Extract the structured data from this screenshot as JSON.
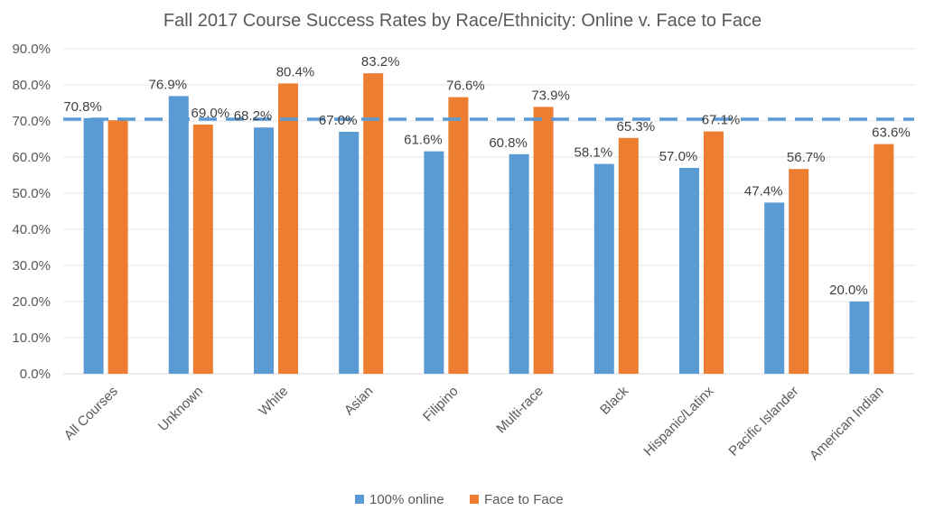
{
  "chart_data": {
    "type": "bar",
    "title": "Fall 2017 Course Success Rates by Race/Ethnicity:  Online v. Face to Face",
    "xlabel": "",
    "ylabel": "",
    "ylim": [
      0,
      90
    ],
    "yticks": [
      "0.0%",
      "10.0%",
      "20.0%",
      "30.0%",
      "40.0%",
      "50.0%",
      "60.0%",
      "70.0%",
      "80.0%",
      "90.0%"
    ],
    "grid": true,
    "legend_position": "bottom",
    "categories": [
      "All Courses",
      "Unknown",
      "White",
      "Asian",
      "Filipino",
      "Multi-race",
      "Black",
      "Hispanic/Latinx",
      "Pacific Islander",
      "American Indian"
    ],
    "series": [
      {
        "name": "100% online",
        "color": "#5b9bd5",
        "values": [
          70.8,
          76.9,
          68.2,
          67.0,
          61.6,
          60.8,
          58.1,
          57.0,
          47.4,
          20.0
        ],
        "labels": [
          "70.8%",
          "76.9%",
          "68.2%",
          "67.0%",
          "61.6%",
          "60.8%",
          "58.1%",
          "57.0%",
          "47.4%",
          "20.0%"
        ]
      },
      {
        "name": "Face to Face",
        "color": "#ed7d31",
        "values": [
          70.2,
          69.0,
          80.4,
          83.2,
          76.6,
          73.9,
          65.3,
          67.1,
          56.7,
          63.6
        ],
        "labels": [
          "",
          "69.0%",
          "80.4%",
          "83.2%",
          "76.6%",
          "73.9%",
          "65.3%",
          "67.1%",
          "56.7%",
          "63.6%"
        ]
      }
    ],
    "reference_line": {
      "value": 70.5,
      "style": "dashed",
      "color": "#5b9bd5"
    }
  }
}
